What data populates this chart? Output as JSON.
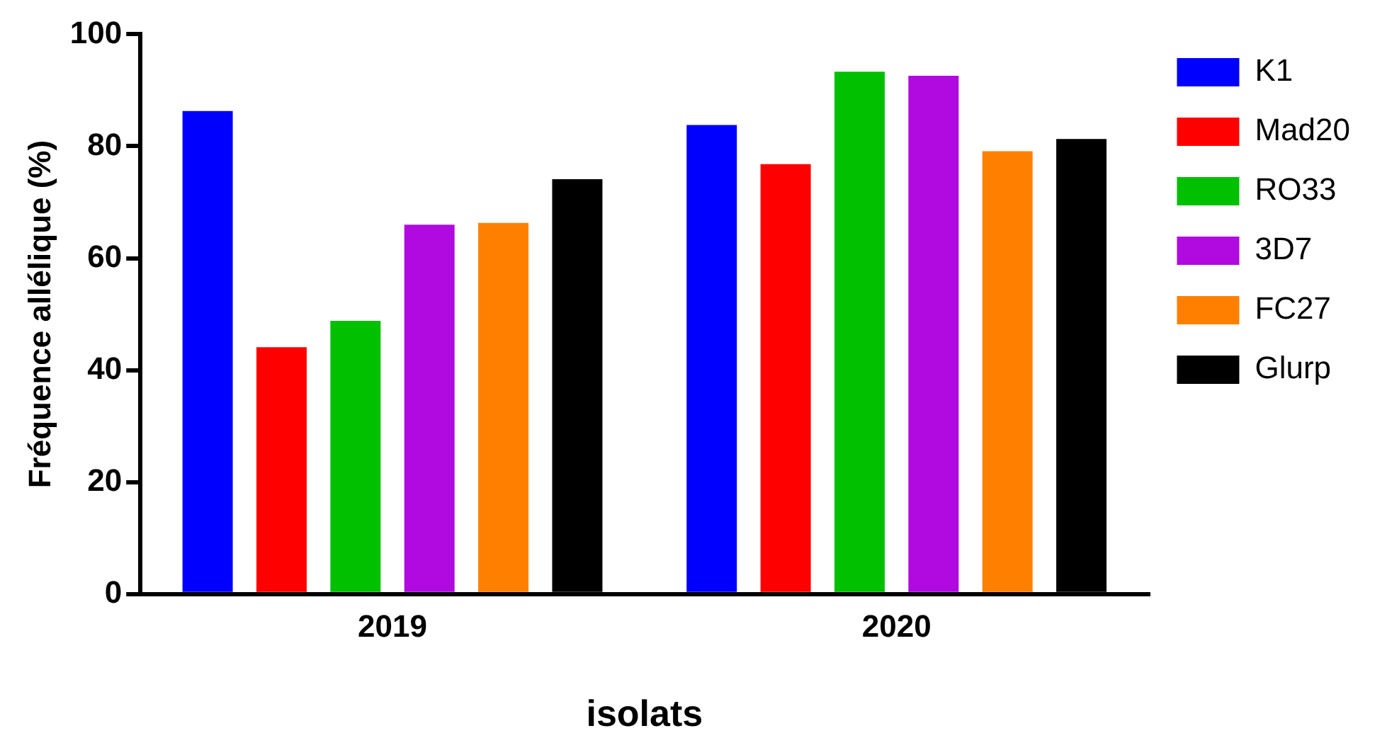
{
  "chart_data": {
    "type": "bar",
    "xlabel": "isolats",
    "ylabel": "Fréquence allélique (%)",
    "categories": [
      "2019",
      "2020"
    ],
    "series": [
      {
        "name": "K1",
        "color": "#0000ff",
        "values": [
          86.3,
          83.8
        ]
      },
      {
        "name": "Mad20",
        "color": "#ff0000",
        "values": [
          44.1,
          76.8
        ]
      },
      {
        "name": "RO33",
        "color": "#00c000",
        "values": [
          48.8,
          93.3
        ]
      },
      {
        "name": "3D7",
        "color": "#b00ae0",
        "values": [
          66,
          92.6
        ]
      },
      {
        "name": "FC27",
        "color": "#ff8000",
        "values": [
          66.3,
          79.1
        ]
      },
      {
        "name": "Glurp",
        "color": "#000000",
        "values": [
          74.1,
          81.3
        ]
      }
    ],
    "ylim": [
      0,
      100
    ],
    "yticks": [
      0,
      20,
      40,
      60,
      80,
      100
    ],
    "grid": false,
    "legend": "right"
  }
}
